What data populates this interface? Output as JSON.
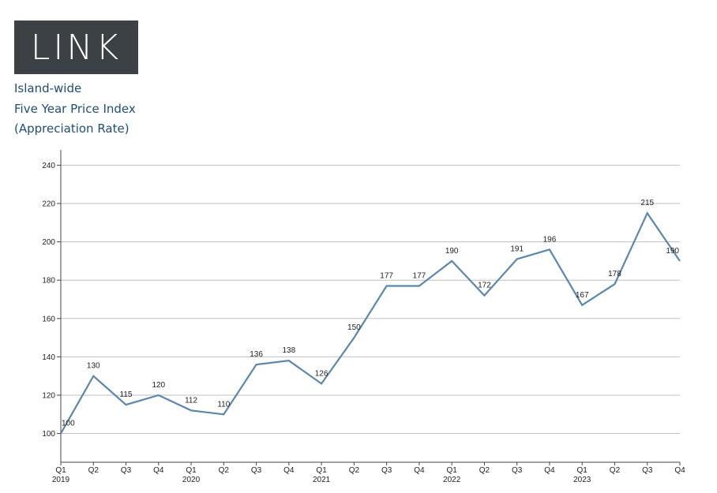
{
  "logo": {
    "text": "LINK"
  },
  "header": {
    "line1": "Island-wide",
    "line2": "Five Year Price Index",
    "line3": "(Appreciation Rate)"
  },
  "chart_data": {
    "type": "line",
    "title": "",
    "xlabel": "",
    "ylabel": "",
    "ylim": [
      85,
      248
    ],
    "yticks": [
      100,
      120,
      140,
      160,
      180,
      200,
      220,
      240
    ],
    "grid": true,
    "line_color": "#5b87ad",
    "categories": [
      "Q1",
      "Q2",
      "Q3",
      "Q4",
      "Q1",
      "Q2",
      "Q3",
      "Q4",
      "Q1",
      "Q2",
      "Q3",
      "Q4",
      "Q1",
      "Q2",
      "Q3",
      "Q4",
      "Q1",
      "Q2",
      "Q3",
      "Q4"
    ],
    "years": [
      {
        "label": "2019",
        "index": 0
      },
      {
        "label": "2020",
        "index": 4
      },
      {
        "label": "2021",
        "index": 8
      },
      {
        "label": "2022",
        "index": 12
      },
      {
        "label": "2023",
        "index": 16
      }
    ],
    "series": [
      {
        "values": [
          100,
          130,
          115,
          120,
          112,
          110,
          136,
          138,
          126,
          150,
          177,
          177,
          190,
          172,
          191,
          196,
          167,
          178,
          215,
          190
        ]
      }
    ]
  }
}
